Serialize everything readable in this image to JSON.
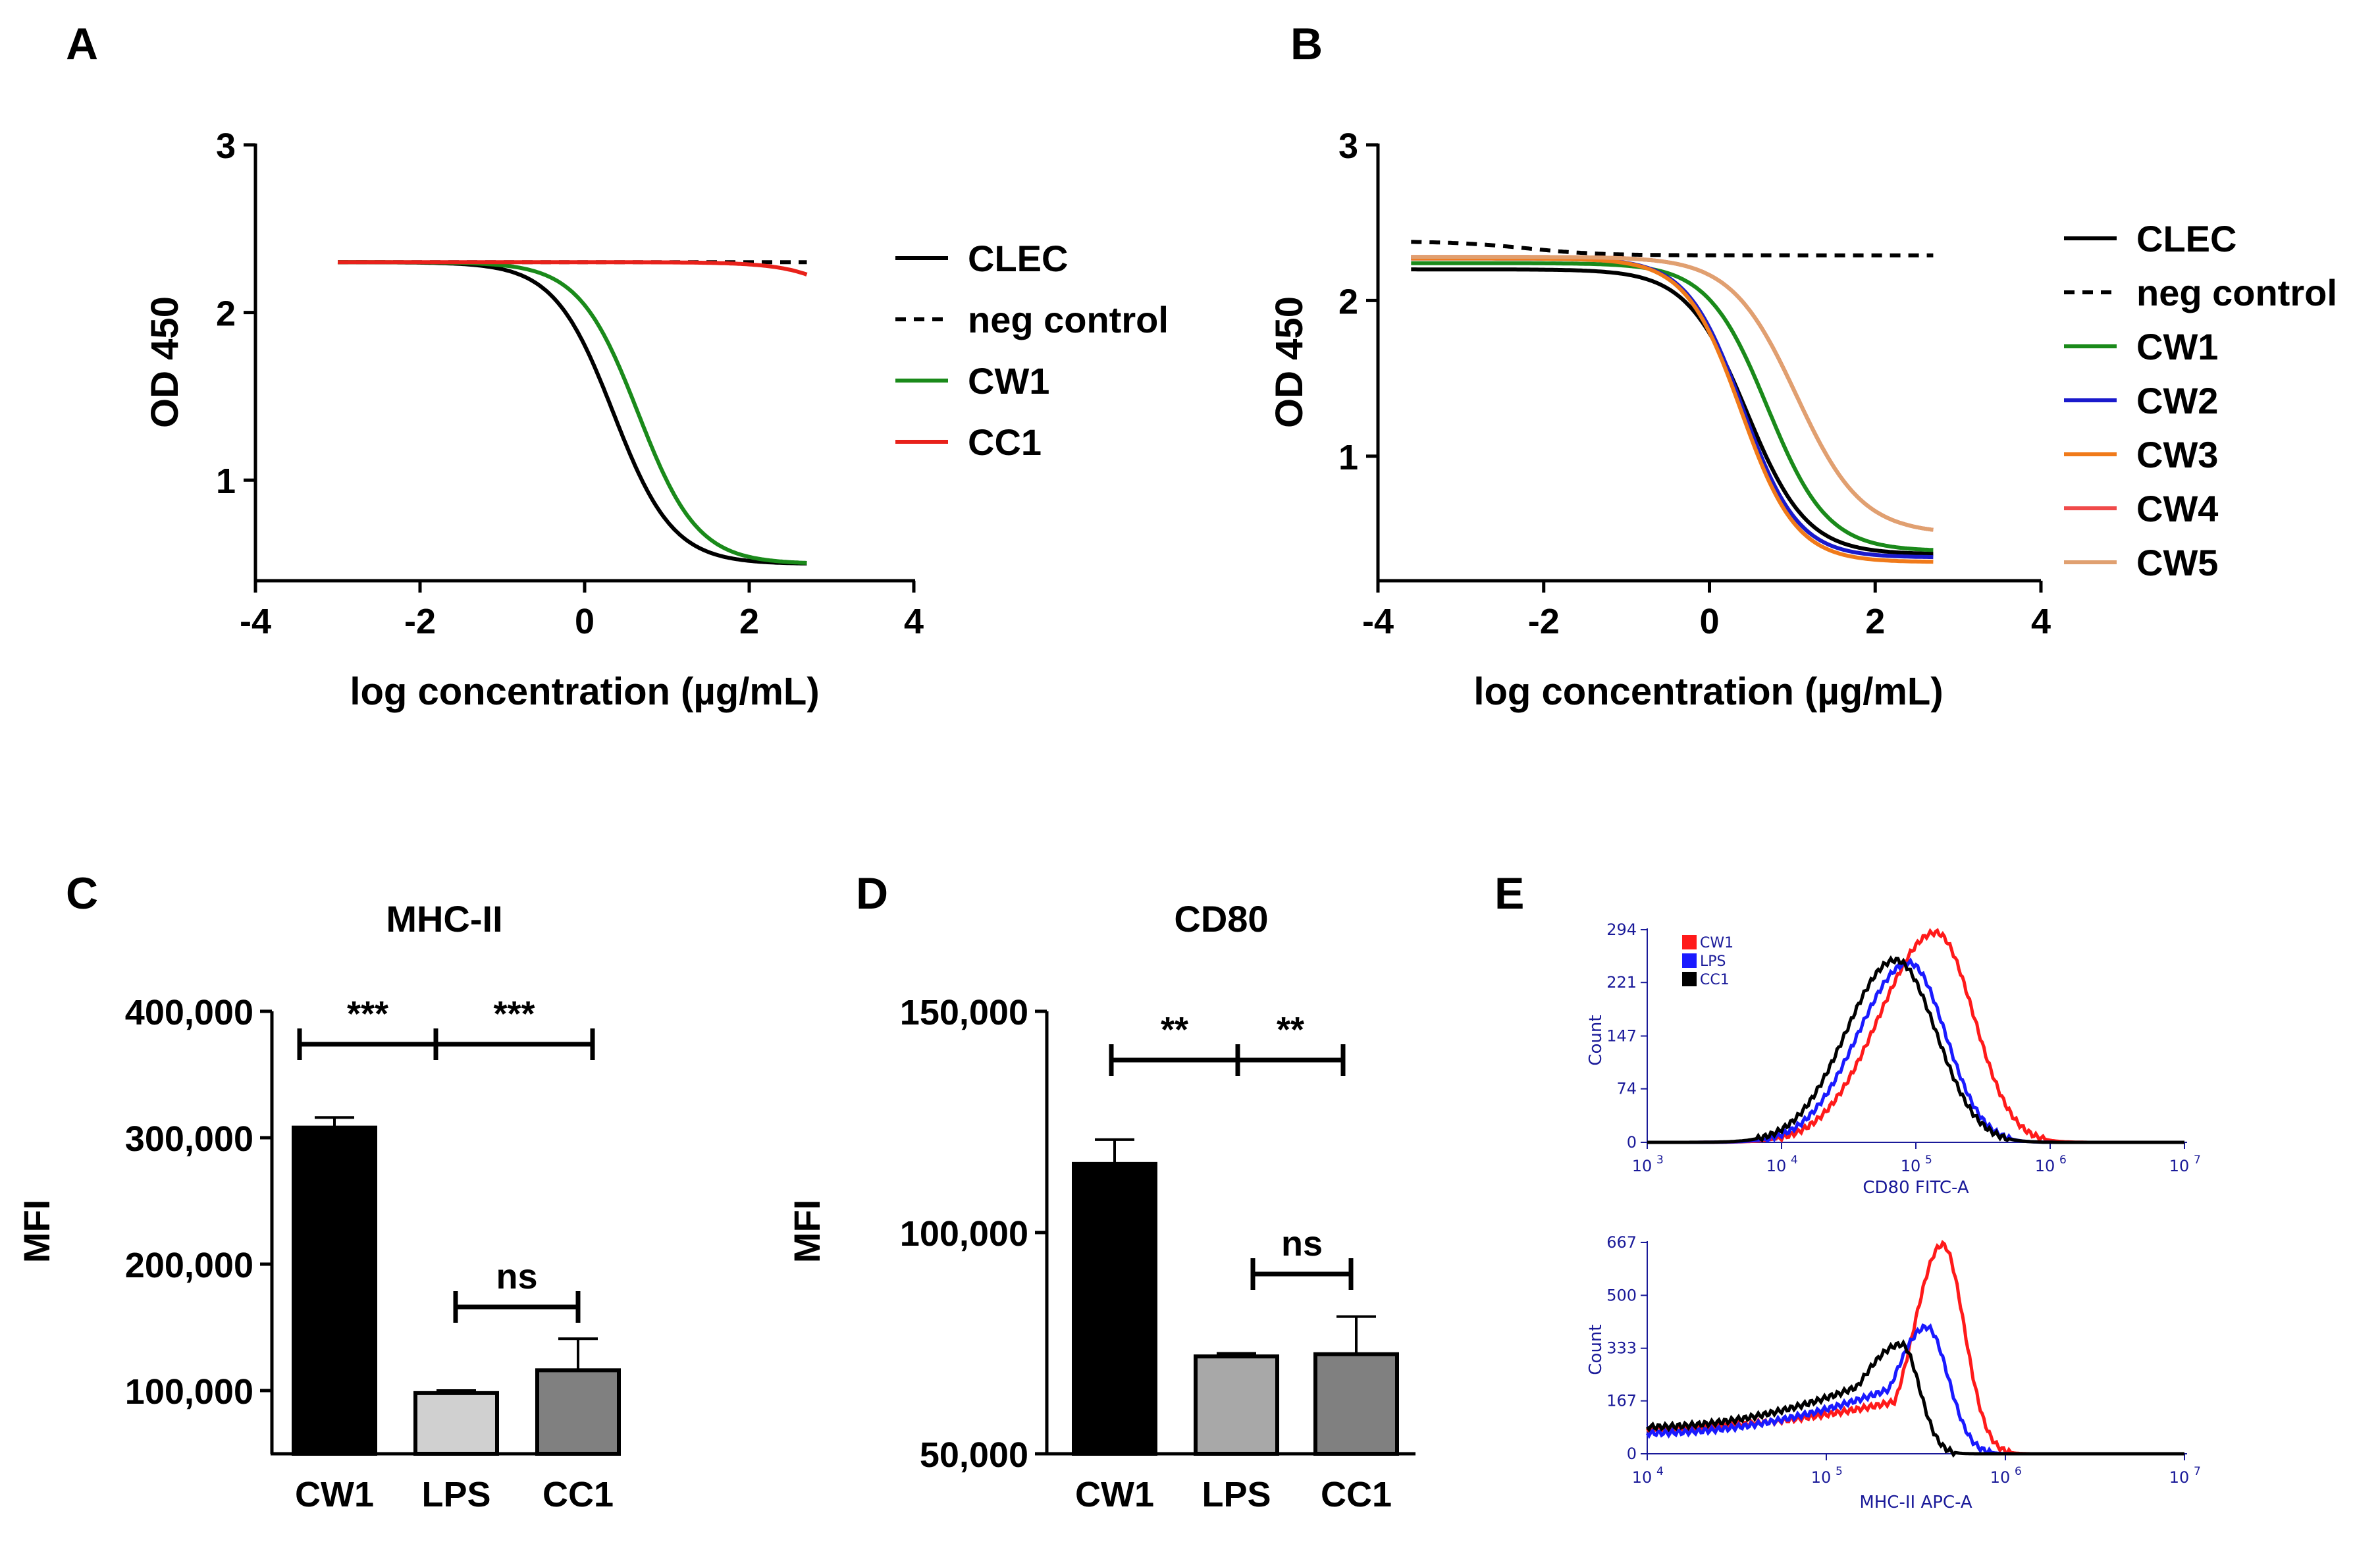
{
  "chart_data": [
    {
      "panel": "A",
      "type": "line",
      "xlabel": "log concentration (µg/mL)",
      "ylabel": "OD 450",
      "xlim": [
        -4,
        4
      ],
      "ylim": [
        0.4,
        3
      ],
      "xticks": [
        "-4",
        "-2",
        "0",
        "2",
        "4"
      ],
      "yticks": [
        "1",
        "2",
        "3"
      ],
      "legend_position": "right",
      "series": [
        {
          "name": "CLEC",
          "color": "#000000",
          "style": "solid",
          "top": 2.3,
          "bottom": 0.5,
          "ec50_log": 0.35,
          "hill": 1.2,
          "x_range": [
            -3,
            2.7
          ]
        },
        {
          "name": "neg control",
          "color": "#000000",
          "style": "dashed",
          "top": 2.3,
          "bottom": 2.3,
          "ec50_log": 0,
          "hill": 1,
          "x_range": [
            -3,
            2.7
          ]
        },
        {
          "name": "CW1",
          "color": "#1a8a1a",
          "style": "solid",
          "top": 2.3,
          "bottom": 0.5,
          "ec50_log": 0.65,
          "hill": 1.2,
          "x_range": [
            -3,
            2.7
          ]
        },
        {
          "name": "CC1",
          "color": "#e8211a",
          "style": "solid",
          "top": 2.3,
          "bottom": 1.3,
          "ec50_log": 3.7,
          "hill": 1.1,
          "x_range": [
            -3,
            2.7
          ]
        }
      ]
    },
    {
      "panel": "B",
      "type": "line",
      "xlabel": "log concentration (µg/mL)",
      "ylabel": "OD 450",
      "xlim": [
        -4,
        4
      ],
      "ylim": [
        0.2,
        3
      ],
      "xticks": [
        "-4",
        "-2",
        "0",
        "2",
        "4"
      ],
      "yticks": [
        "1",
        "2",
        "3"
      ],
      "legend_position": "right",
      "series": [
        {
          "name": "CLEC",
          "color": "#000000",
          "style": "solid",
          "top": 2.2,
          "bottom": 0.37,
          "ec50_log": 0.45,
          "hill": 1.2,
          "x_range": [
            -3.6,
            2.7
          ]
        },
        {
          "name": "neg control",
          "color": "#000000",
          "style": "dashed",
          "top": 2.38,
          "bottom": 2.29,
          "ec50_log": -2.2,
          "hill": 1.0,
          "x_range": [
            -3.6,
            2.7
          ]
        },
        {
          "name": "CW1",
          "color": "#1a8a1a",
          "style": "solid",
          "top": 2.24,
          "bottom": 0.39,
          "ec50_log": 0.7,
          "hill": 1.2,
          "x_range": [
            -3.6,
            2.7
          ]
        },
        {
          "name": "CW2",
          "color": "#1a1acc",
          "style": "solid",
          "top": 2.27,
          "bottom": 0.35,
          "ec50_log": 0.4,
          "hill": 1.3,
          "x_range": [
            -3.6,
            2.7
          ]
        },
        {
          "name": "CW3",
          "color": "#f07a1a",
          "style": "solid",
          "top": 2.27,
          "bottom": 0.32,
          "ec50_log": 0.38,
          "hill": 1.3,
          "x_range": [
            -3.6,
            2.7
          ]
        },
        {
          "name": "CW4",
          "color": "#f04a4a",
          "style": "solid",
          "top": 2.28,
          "bottom": 0.5,
          "ec50_log": 1.05,
          "hill": 1.1,
          "x_range": [
            -3.6,
            2.7
          ]
        },
        {
          "name": "CW5",
          "color": "#e0a070",
          "style": "solid",
          "top": 2.28,
          "bottom": 0.5,
          "ec50_log": 1.05,
          "hill": 1.1,
          "x_range": [
            -3.6,
            2.7
          ]
        }
      ]
    },
    {
      "panel": "C",
      "type": "bar",
      "title": "MHC-II",
      "ylabel": "MFI",
      "ylim": [
        50000,
        400000
      ],
      "yticks": [
        "100,000",
        "200,000",
        "300,000",
        "400,000"
      ],
      "categories": [
        "CW1",
        "LPS",
        "CC1"
      ],
      "values": [
        308000,
        98000,
        116000
      ],
      "errors": [
        8000,
        2000,
        25000
      ],
      "colors": [
        "#000000",
        "#d0d0d0",
        "#808080"
      ],
      "significance": [
        {
          "from": 0,
          "to": 1,
          "label": "***"
        },
        {
          "from": 1,
          "to": 2,
          "label": "***"
        },
        {
          "from": 1,
          "to": 2,
          "label": "ns"
        }
      ]
    },
    {
      "panel": "D",
      "type": "bar",
      "title": "CD80",
      "ylabel": "MFI",
      "ylim": [
        50000,
        150000
      ],
      "yticks": [
        "50,000",
        "100,000",
        "150,000"
      ],
      "categories": [
        "CW1",
        "LPS",
        "CC1"
      ],
      "values": [
        115500,
        72000,
        72500
      ],
      "errors": [
        5500,
        700,
        8500
      ],
      "colors": [
        "#000000",
        "#a8a8a8",
        "#808080"
      ],
      "significance": [
        {
          "from": 0,
          "to": 1,
          "label": "**"
        },
        {
          "from": 1,
          "to": 2,
          "label": "**"
        },
        {
          "from": 1,
          "to": 2,
          "label": "ns"
        }
      ]
    },
    {
      "panel": "E",
      "type": "histogram",
      "legend": [
        {
          "name": "CW1",
          "color": "#ff1a1a"
        },
        {
          "name": "LPS",
          "color": "#1a1aff"
        },
        {
          "name": "CC1",
          "color": "#000000"
        }
      ],
      "plots": [
        {
          "xlabel": "CD80 FITC-A",
          "ylabel": "Count",
          "xlim_log10": [
            3,
            7
          ],
          "ylim": [
            0,
            294
          ],
          "yticks": [
            "0",
            "74",
            "147",
            "221",
            "294"
          ],
          "xticks": [
            "3",
            "4",
            "5",
            "6",
            "7"
          ],
          "series": [
            {
              "name": "CW1",
              "color": "#ff1a1a",
              "peak_log": 5.15,
              "peak_count": 290,
              "sigma_left": 0.42,
              "sigma_right": 0.28,
              "floor": 0
            },
            {
              "name": "LPS",
              "color": "#1a1aff",
              "peak_log": 4.95,
              "peak_count": 248,
              "sigma_left": 0.38,
              "sigma_right": 0.27,
              "floor": 0
            },
            {
              "name": "CC1",
              "color": "#000000",
              "peak_log": 4.85,
              "peak_count": 252,
              "sigma_left": 0.37,
              "sigma_right": 0.3,
              "floor": 0
            }
          ]
        },
        {
          "xlabel": "MHC-II APC-A",
          "ylabel": "Count",
          "xlim_log10": [
            4,
            7
          ],
          "ylim": [
            0,
            667
          ],
          "yticks": [
            "0",
            "167",
            "333",
            "500",
            "667"
          ],
          "xticks": [
            "4",
            "5",
            "6",
            "7"
          ],
          "series": [
            {
              "name": "CW1",
              "color": "#ff1a1a",
              "peak_log": 5.65,
              "peak_count": 660,
              "sigma_left": 0.16,
              "sigma_right": 0.12,
              "floor": 80,
              "floor_end": 200
            },
            {
              "name": "LPS",
              "color": "#1a1aff",
              "peak_log": 5.56,
              "peak_count": 400,
              "sigma_left": 0.18,
              "sigma_right": 0.12,
              "floor": 65,
              "floor_end": 250
            },
            {
              "name": "CC1",
              "color": "#000000",
              "peak_log": 5.42,
              "peak_count": 345,
              "sigma_left": 0.25,
              "sigma_right": 0.1,
              "floor": 85,
              "floor_end": 270
            }
          ]
        }
      ]
    }
  ],
  "panel_labels": {
    "A": "A",
    "B": "B",
    "C": "C",
    "D": "D",
    "E": "E"
  },
  "superscripts": {
    "e3": "3",
    "e4": "4",
    "e5": "5",
    "e6": "6",
    "e7": "7"
  },
  "base_ten": "10"
}
